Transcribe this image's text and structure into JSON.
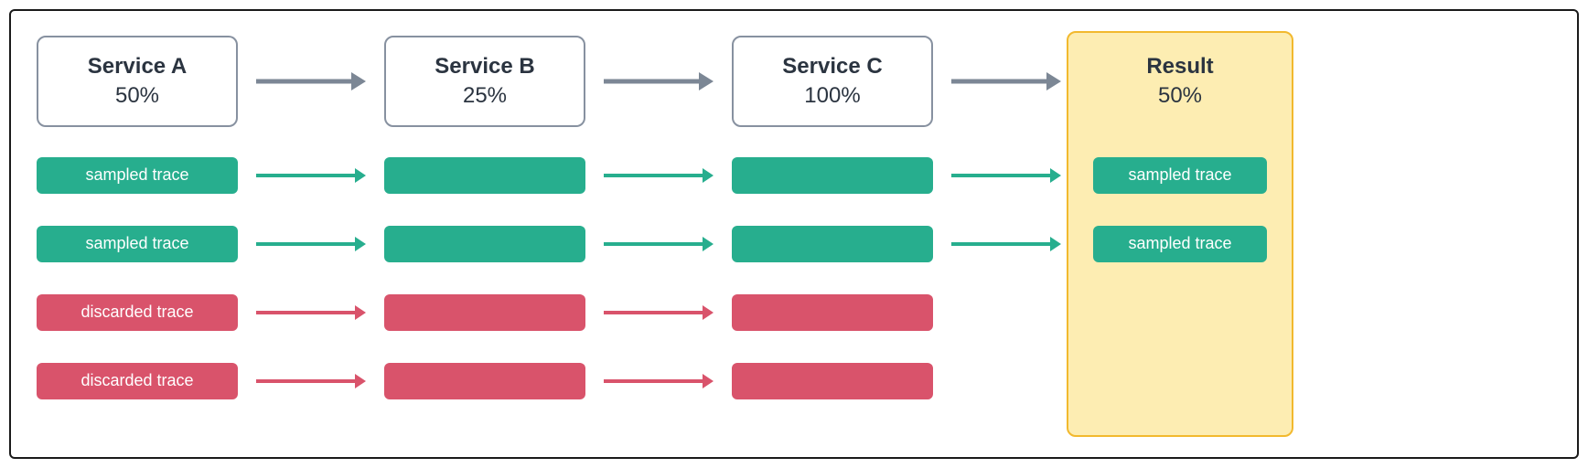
{
  "diagram": {
    "type": "flowchart",
    "grid": {
      "cols": 7,
      "rows": 5
    },
    "colors": {
      "frame_border": "#1a1a1a",
      "header_border": "#8791a0",
      "header_text": "#2b3440",
      "arrow_gray": "#7c8795",
      "sampled": "#27ae8e",
      "discarded": "#d9536b",
      "result_bg": "#fdedb2",
      "result_border": "#f2b92e",
      "pill_text": "#ffffff"
    },
    "header_arrow_thickness": 5,
    "trace_arrow_thickness": 4,
    "columns": [
      {
        "title": "Service A",
        "pct": "50%",
        "is_result": false
      },
      {
        "title": "Service B",
        "pct": "25%",
        "is_result": false
      },
      {
        "title": "Service C",
        "pct": "100%",
        "is_result": false
      },
      {
        "title": "Result",
        "pct": "50%",
        "is_result": true
      }
    ],
    "rows": [
      {
        "kind": "sampled",
        "label": "sampled trace",
        "reaches_result": true
      },
      {
        "kind": "sampled",
        "label": "sampled trace",
        "reaches_result": true
      },
      {
        "kind": "discarded",
        "label": "discarded trace",
        "reaches_result": false
      },
      {
        "kind": "discarded",
        "label": "discarded trace",
        "reaches_result": false
      }
    ]
  }
}
